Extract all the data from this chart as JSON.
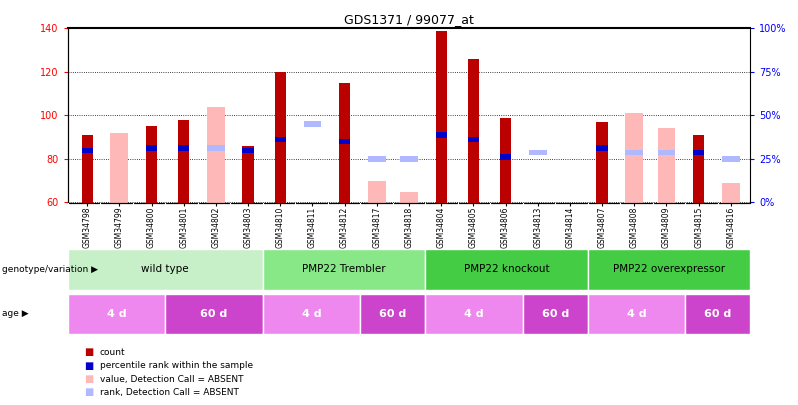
{
  "title": "GDS1371 / 99077_at",
  "samples": [
    "GSM34798",
    "GSM34799",
    "GSM34800",
    "GSM34801",
    "GSM34802",
    "GSM34803",
    "GSM34810",
    "GSM34811",
    "GSM34812",
    "GSM34817",
    "GSM34818",
    "GSM34804",
    "GSM34805",
    "GSM34806",
    "GSM34813",
    "GSM34814",
    "GSM34807",
    "GSM34808",
    "GSM34809",
    "GSM34815",
    "GSM34816"
  ],
  "count_present": [
    91,
    null,
    95,
    98,
    null,
    86,
    120,
    null,
    115,
    null,
    null,
    139,
    126,
    99,
    null,
    null,
    97,
    null,
    null,
    91,
    null
  ],
  "count_absent": [
    null,
    92,
    null,
    null,
    104,
    null,
    null,
    null,
    null,
    70,
    65,
    null,
    null,
    null,
    null,
    null,
    null,
    101,
    94,
    null,
    69
  ],
  "rank_present": [
    84,
    null,
    85,
    85,
    null,
    84,
    89,
    null,
    88,
    null,
    null,
    91,
    89,
    81,
    null,
    null,
    85,
    null,
    null,
    83,
    null
  ],
  "rank_absent": [
    null,
    null,
    null,
    null,
    85,
    null,
    null,
    96,
    null,
    80,
    80,
    null,
    null,
    null,
    83,
    null,
    null,
    83,
    83,
    null,
    80
  ],
  "ylim": [
    60,
    140
  ],
  "yticks_left": [
    60,
    80,
    100,
    120,
    140
  ],
  "dark_red": "#bb0000",
  "light_pink": "#ffb8b8",
  "dark_blue": "#0000cc",
  "light_blue": "#b0b8ff",
  "gray_bg": "#d8d8d8",
  "genotype_groups": [
    {
      "label": "wild type",
      "start": 0,
      "end": 5,
      "color": "#c8f0c8"
    },
    {
      "label": "PMP22 Trembler",
      "start": 6,
      "end": 10,
      "color": "#88e888"
    },
    {
      "label": "PMP22 knockout",
      "start": 11,
      "end": 15,
      "color": "#44cc44"
    },
    {
      "label": "PMP22 overexpressor",
      "start": 16,
      "end": 20,
      "color": "#44cc44"
    }
  ],
  "age_groups": [
    {
      "label": "4 d",
      "start": 0,
      "end": 2,
      "color": "#ee88ee"
    },
    {
      "label": "60 d",
      "start": 3,
      "end": 5,
      "color": "#cc44cc"
    },
    {
      "label": "4 d",
      "start": 6,
      "end": 8,
      "color": "#ee88ee"
    },
    {
      "label": "60 d",
      "start": 9,
      "end": 10,
      "color": "#cc44cc"
    },
    {
      "label": "4 d",
      "start": 11,
      "end": 13,
      "color": "#ee88ee"
    },
    {
      "label": "60 d",
      "start": 14,
      "end": 15,
      "color": "#cc44cc"
    },
    {
      "label": "4 d",
      "start": 16,
      "end": 18,
      "color": "#ee88ee"
    },
    {
      "label": "60 d",
      "start": 19,
      "end": 20,
      "color": "#cc44cc"
    }
  ],
  "legend_items": [
    {
      "color": "#bb0000",
      "label": "count"
    },
    {
      "color": "#0000cc",
      "label": "percentile rank within the sample"
    },
    {
      "color": "#ffb8b8",
      "label": "value, Detection Call = ABSENT"
    },
    {
      "color": "#b0b8ff",
      "label": "rank, Detection Call = ABSENT"
    }
  ]
}
